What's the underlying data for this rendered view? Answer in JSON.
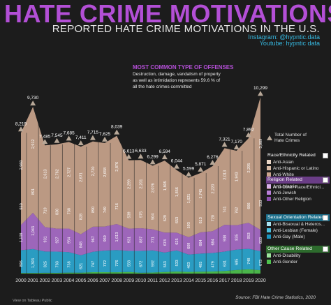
{
  "header": {
    "title": "HATE CRIME MOTIVATIONS",
    "subtitle": "REPORTED HATE CRIME MOTIVATIONS IN THE U.S.",
    "instagram": "Instagram: @hypntic.data",
    "youtube": "Youtube: hypntic data"
  },
  "annotation": {
    "heading": "MOST COMMON TYPE OF OFFENSES",
    "line1": "Destruction, damage, vandalism of property",
    "line2": "as well as intimidation represents 59.6 % of",
    "line3": "all the hate crimes committed"
  },
  "legend": {
    "total_label": "Total Number of Hate Crimes",
    "groups": [
      {
        "title": "Race/Ethnicity Related",
        "header_color": "#1c1c1c",
        "items": [
          {
            "label": "Anti-Asian",
            "color": "#e9d6c6"
          },
          {
            "label": "Anti-Hispanic or Latino",
            "color": "#d9bca6"
          },
          {
            "label": "Anti-White",
            "color": "#c9a48c"
          },
          {
            "label": "Anti-Black",
            "color": "#b0897a"
          },
          {
            "label": "Anti-Other Race/Ethnici...",
            "color": "#8c6a5c"
          }
        ]
      },
      {
        "title": "Religion Related",
        "header_color": "#6a3d86",
        "items": [
          {
            "label": "Anti-Islamic",
            "color": "#d8b0ec"
          },
          {
            "label": "Anti-Jewish",
            "color": "#b97fd8"
          },
          {
            "label": "Anti-Other Religion",
            "color": "#8e4fb0"
          }
        ]
      },
      {
        "title": "Sexual Orientation Related",
        "header_color": "#1b6e8a",
        "items": [
          {
            "label": "Anti-Bisexual & Heteros...",
            "color": "#a9e3f2"
          },
          {
            "label": "Anti-Lesbian (Female)",
            "color": "#4cc0e0"
          },
          {
            "label": "Anti-Gay (Male)",
            "color": "#1b96c2"
          }
        ]
      },
      {
        "title": "Other Cause Related",
        "header_color": "#2d6b2d",
        "items": [
          {
            "label": "Anti-Disability",
            "color": "#9ce59c"
          },
          {
            "label": "Anti-Gender",
            "color": "#4ec24e"
          }
        ]
      }
    ]
  },
  "footer": {
    "source": "Source: FBI Hate Crime Statistics, 2020",
    "tableau": "View on Tableau Public"
  },
  "colors": {
    "title": "#b34fd6",
    "race": "#c9a48c",
    "religion": "#a86cc8",
    "sexual": "#2ba7d0",
    "other": "#4ec24e",
    "background": "#1c1c1c"
  },
  "chart_data": {
    "type": "area",
    "x": [
      "2000",
      "2001",
      "2002",
      "2003",
      "2004",
      "2005",
      "2006",
      "2007",
      "2008",
      "2009",
      "2010",
      "2011",
      "2012",
      "2013",
      "2014",
      "2015",
      "2016",
      "2017",
      "2018",
      "2019",
      "2020"
    ],
    "totals": [
      8219,
      9730,
      7485,
      7545,
      7685,
      7411,
      7715,
      7625,
      8039,
      6613,
      6633,
      6299,
      6594,
      6044,
      5599,
      5871,
      6276,
      7321,
      7170,
      7892,
      10299
    ],
    "total_labels": [
      "8,219",
      "9,730",
      "7,485",
      "7,545",
      "7,685",
      "7,411",
      "7,715",
      "7,625",
      "8,039",
      "6,613",
      "6,633",
      "6,299",
      "6,594",
      "6,044",
      "5,599",
      "5,871",
      "6,276",
      "7,321",
      "7,170",
      "7,892",
      "10,299"
    ],
    "series": [
      {
        "group": "Other Cause Related",
        "values": [
          36,
          37,
          45,
          43,
          57,
          53,
          79,
          79,
          78,
          99,
          48,
          61,
          92,
          123,
          95,
          114,
          124,
          152,
          207,
          250,
          200
        ]
      },
      {
        "group": "Sexual Orientation Related",
        "values": [
          1330,
          1393,
          1244,
          1239,
          1197,
          1017,
          1195,
          1265,
          1297,
          1223,
          1277,
          1293,
          1135,
          1233,
          1017,
          1053,
          1076,
          1130,
          1196,
          1195,
          1110
        ]
      },
      {
        "group": "Religion Related",
        "values": [
          1472,
          2118,
          1426,
          1343,
          1374,
          1227,
          1462,
          1400,
          1519,
          1303,
          1322,
          1233,
          1166,
          1031,
          1014,
          1244,
          1273,
          1564,
          1419,
          1521,
          1244
        ]
      },
      {
        "group": "Race/Ethnicity Related",
        "values": [
          5381,
          6182,
          4770,
          4920,
          5057,
          5114,
          4979,
          4881,
          5145,
          3988,
          3986,
          3712,
          4201,
          3657,
          3473,
          3460,
          3803,
          4475,
          4348,
          4926,
          7745
        ]
      }
    ],
    "segment_labels": {
      "anti_black": [
        "2,960",
        "2,912",
        "2,613",
        "2,762",
        "2,727",
        "2,671",
        "2,720",
        "2,658",
        "2,876",
        "2,299",
        "2,201",
        "2,076",
        "1,805",
        "1,856",
        "1,621",
        "1,745",
        "2,220",
        "2,013",
        "1,943",
        "2,295",
        "3,089"
      ],
      "anti_white": [
        "910",
        "891",
        "719",
        "830",
        "738",
        "828",
        "890",
        "749",
        "716",
        "539",
        "575",
        "504",
        "629",
        "653",
        "593",
        "613",
        "720",
        "741",
        "762",
        "666",
        "933"
      ],
      "anti_jewish": [
        "1,109",
        "1,043",
        "931",
        "927",
        "954",
        "848",
        "967",
        "969",
        "1,013",
        "931",
        "887",
        "771",
        "674",
        "625",
        "609",
        "664",
        "684",
        "938",
        "835",
        "953",
        "683"
      ],
      "anti_gay": [
        "896",
        "1,393",
        "825",
        "783",
        "738",
        "621",
        "747",
        "772",
        "776",
        "558",
        "672",
        "592",
        "563",
        "533",
        "463",
        "485",
        "479",
        "631",
        "685",
        "748",
        "673"
      ]
    },
    "title": "HATE CRIME MOTIVATIONS",
    "xlabel": "",
    "ylabel": "",
    "ylim": [
      0,
      11000
    ],
    "grid": false,
    "legend_position": "right"
  }
}
